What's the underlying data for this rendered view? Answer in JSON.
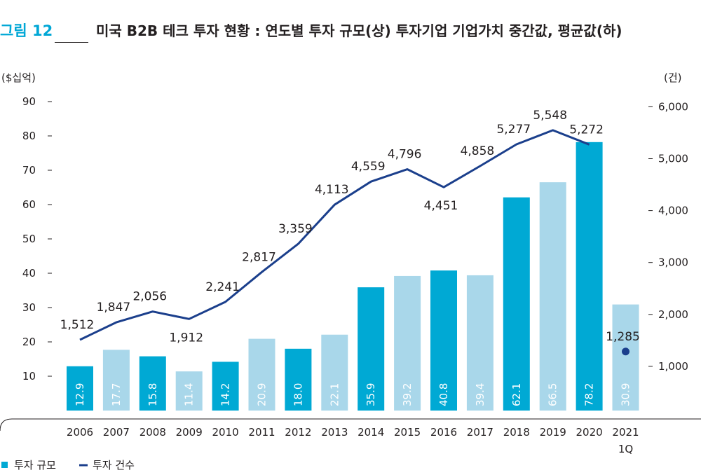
{
  "figure": {
    "label": "그림 12",
    "title": "미국 B2B 테크 투자 현황 : 연도별 투자 규모(상) 투자기업 기업가치 중간값, 평균값(하)"
  },
  "colors": {
    "accent": "#00a7d6",
    "bar_dark": "#00a9d4",
    "bar_light": "#a9d7ea",
    "line": "#1b3f8c",
    "text": "#231f20"
  },
  "chart_data": {
    "type": "bar",
    "categories": [
      "2006",
      "2007",
      "2008",
      "2009",
      "2010",
      "2011",
      "2012",
      "2013",
      "2014",
      "2015",
      "2016",
      "2017",
      "2018",
      "2019",
      "2020",
      "2021\n1Q"
    ],
    "series": [
      {
        "name": "투자 규모",
        "type": "bar",
        "axis": "left",
        "values": [
          12.9,
          17.7,
          15.8,
          11.4,
          14.2,
          20.9,
          18.0,
          22.1,
          35.9,
          39.2,
          40.8,
          39.4,
          62.1,
          66.5,
          78.2,
          30.9
        ],
        "value_labels": [
          "12.9",
          "17.7",
          "15.8",
          "11.4",
          "14.2",
          "20.9",
          "18.0",
          "22.1",
          "35.9",
          "39.2",
          "40.8",
          "39.4",
          "62.1",
          "66.5",
          "78.2",
          "30.9"
        ],
        "colors": [
          "#00a9d4",
          "#a9d7ea",
          "#00a9d4",
          "#a9d7ea",
          "#00a9d4",
          "#a9d7ea",
          "#00a9d4",
          "#a9d7ea",
          "#00a9d4",
          "#a9d7ea",
          "#00a9d4",
          "#a9d7ea",
          "#00a9d4",
          "#a9d7ea",
          "#00a9d4",
          "#a9d7ea"
        ]
      },
      {
        "name": "투자 건수",
        "type": "line",
        "axis": "right",
        "values": [
          1512,
          1847,
          2056,
          1912,
          2241,
          2817,
          3359,
          4113,
          4559,
          4796,
          4451,
          4858,
          5277,
          5548,
          5272,
          1285
        ],
        "value_labels": [
          "1,512",
          "1,847",
          "2,056",
          "1,912",
          "2,241",
          "2,817",
          "3,359",
          "4,113",
          "4,559",
          "4,796",
          "4,451",
          "4,858",
          "5,277",
          "5,548",
          "5,272",
          "1,285"
        ],
        "line_points": 15,
        "last_point_marker": "dot"
      }
    ],
    "y_left": {
      "label": "($십억)",
      "ticks": [
        10,
        20,
        30,
        40,
        50,
        60,
        70,
        80,
        90
      ],
      "tick_labels": [
        "10",
        "20",
        "30",
        "40",
        "50",
        "60",
        "70",
        "80",
        "90"
      ],
      "range": [
        0,
        93
      ]
    },
    "y_right": {
      "label": "(건)",
      "ticks": [
        1000,
        2000,
        3000,
        4000,
        5000,
        6000
      ],
      "tick_labels": [
        "1,000",
        "2,000",
        "3,000",
        "4,000",
        "5,000",
        "6,000"
      ],
      "range": [
        -750,
        6200
      ]
    },
    "legend": {
      "position": "bottom-left",
      "items": [
        {
          "label": "투자 규모",
          "marker": "square",
          "color": "#00a9d4"
        },
        {
          "label": "투자 건수",
          "marker": "line",
          "color": "#1b3f8c"
        }
      ]
    },
    "grid": false
  }
}
